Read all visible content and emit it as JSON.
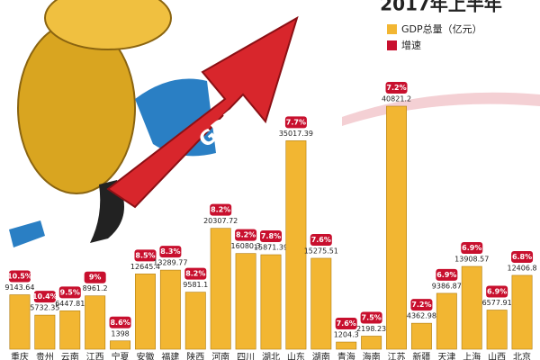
{
  "chart_data": {
    "type": "bar",
    "title": "2017年上半年",
    "categories": [
      "重庆",
      "贵州",
      "云南",
      "江西",
      "宁夏",
      "安徽",
      "福建",
      "陕西",
      "河南",
      "四川",
      "湖北",
      "山东",
      "湖南",
      "青海",
      "海南",
      "江苏",
      "新疆",
      "天津",
      "上海",
      "山西",
      "北京"
    ],
    "series": [
      {
        "name": "GDP总量（亿元）",
        "color": "#f2b632",
        "values": [
          9143.64,
          5732.35,
          6447.81,
          8961.2,
          1398,
          12645.4,
          13289.77,
          9581.1,
          20307.72,
          16080.3,
          15871.39,
          35017.39,
          15275.51,
          1204.3,
          2198.23,
          40821.2,
          4362.98,
          9386.87,
          13908.57,
          6577.91,
          12406.8
        ]
      },
      {
        "name": "增速",
        "color": "#c8102e",
        "values": [
          10.5,
          10.4,
          9.5,
          9,
          8.6,
          8.5,
          8.3,
          8.2,
          8.2,
          8.2,
          7.8,
          7.7,
          7.6,
          7.6,
          7.5,
          7.2,
          7.2,
          6.9,
          6.9,
          6.9,
          6.8
        ],
        "value_labels": [
          "10.5%",
          "10.4%",
          "9.5%",
          "9%",
          "8.6%",
          "8.5%",
          "8.3%",
          "8.2%",
          "8.2%",
          "8.2%",
          "7.8%",
          "7.7%",
          "7.6%",
          "7.6%",
          "7.5%",
          "7.2%",
          "7.2%",
          "6.9%",
          "6.9%",
          "6.9%",
          "6.8%"
        ]
      }
    ]
  }
}
